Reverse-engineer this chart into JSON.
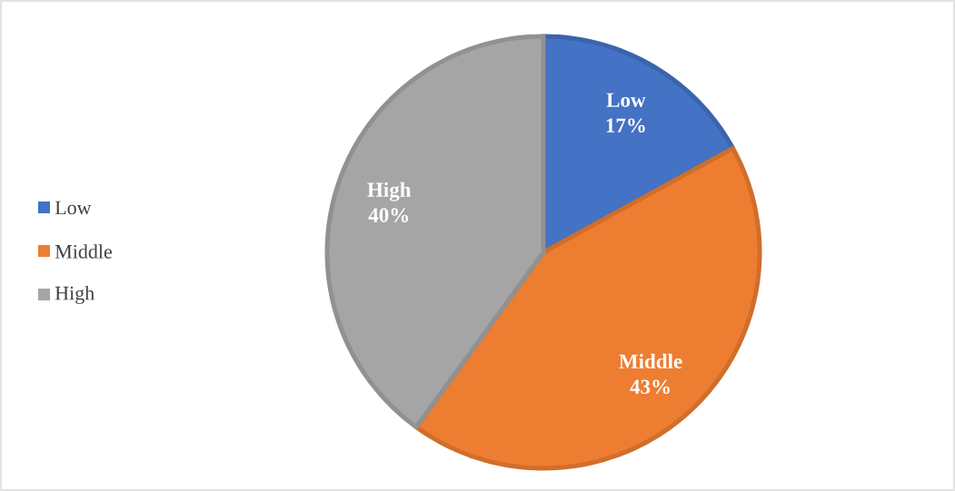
{
  "chart_data": {
    "type": "pie",
    "categories": [
      "Low",
      "Middle",
      "High"
    ],
    "values": [
      17,
      43,
      40
    ],
    "colors": [
      "#4472c4",
      "#ed7d31",
      "#a5a5a5"
    ],
    "value_labels": [
      "17%",
      "43%",
      "40%"
    ],
    "legend": "left"
  }
}
